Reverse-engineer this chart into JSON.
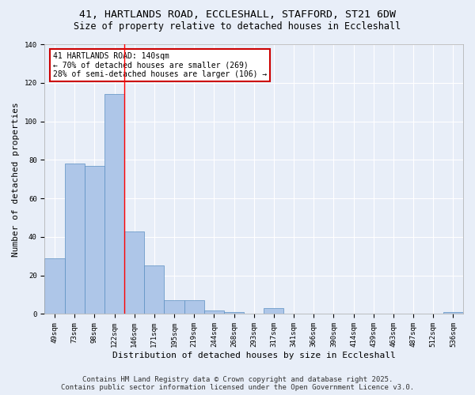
{
  "title1": "41, HARTLANDS ROAD, ECCLESHALL, STAFFORD, ST21 6DW",
  "title2": "Size of property relative to detached houses in Eccleshall",
  "xlabel": "Distribution of detached houses by size in Eccleshall",
  "ylabel": "Number of detached properties",
  "bar_labels": [
    "49sqm",
    "73sqm",
    "98sqm",
    "122sqm",
    "146sqm",
    "171sqm",
    "195sqm",
    "219sqm",
    "244sqm",
    "268sqm",
    "293sqm",
    "317sqm",
    "341sqm",
    "366sqm",
    "390sqm",
    "414sqm",
    "439sqm",
    "463sqm",
    "487sqm",
    "512sqm",
    "536sqm"
  ],
  "bar_values": [
    29,
    78,
    77,
    114,
    43,
    25,
    7,
    7,
    2,
    1,
    0,
    3,
    0,
    0,
    0,
    0,
    0,
    0,
    0,
    0,
    1
  ],
  "bar_color": "#aec6e8",
  "bar_edge_color": "#5a8fc2",
  "background_color": "#e8eef8",
  "grid_color": "#ffffff",
  "red_line_x": 3.5,
  "annotation_text": "41 HARTLANDS ROAD: 140sqm\n← 70% of detached houses are smaller (269)\n28% of semi-detached houses are larger (106) →",
  "annotation_box_color": "#ffffff",
  "annotation_border_color": "#cc0000",
  "footer1": "Contains HM Land Registry data © Crown copyright and database right 2025.",
  "footer2": "Contains public sector information licensed under the Open Government Licence v3.0.",
  "ylim": [
    0,
    140
  ],
  "title_fontsize": 9.5,
  "subtitle_fontsize": 8.5,
  "axis_label_fontsize": 8,
  "tick_fontsize": 6.5,
  "annotation_fontsize": 7,
  "footer_fontsize": 6.5
}
